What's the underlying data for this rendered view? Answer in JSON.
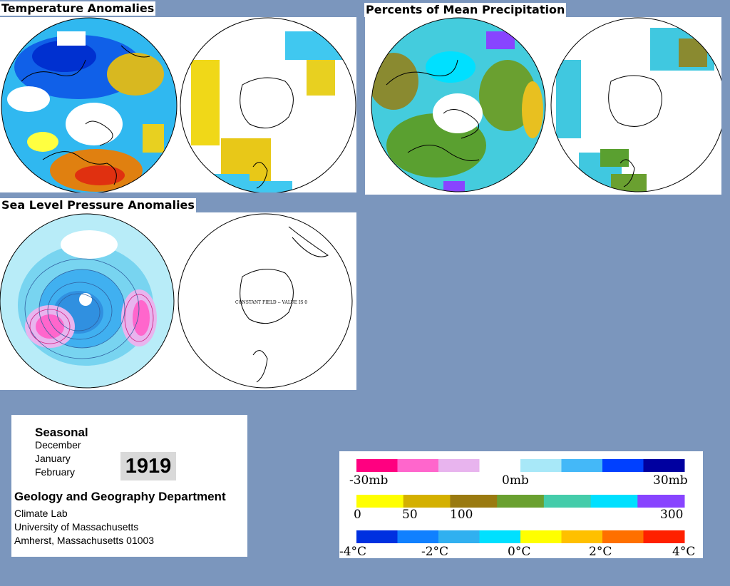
{
  "panels": {
    "temperature": {
      "title": "Temperature Anomalies"
    },
    "precipitation": {
      "title": "Percents of Mean Precipitation"
    },
    "pressure": {
      "title": "Sea Level Pressure Anomalies",
      "annotation": "CONSTANT FIELD -- VALUE IS 0"
    }
  },
  "info": {
    "season": "Seasonal",
    "months": [
      "December",
      "January",
      "February"
    ],
    "year": "1919",
    "department": "Geology and Geography Department",
    "address_lines": [
      "Climate Lab",
      "University of Massachusetts",
      "Amherst, Massachusetts 01003"
    ]
  },
  "legend": {
    "pressure": {
      "ticks": [
        "-30mb",
        "0mb",
        "30mb"
      ],
      "colors": [
        "#ff0080",
        "#ff66cc",
        "#e8b4ee",
        "#ffffff",
        "#a8e8f8",
        "#44b8f8",
        "#0040ff",
        "#0000a0"
      ]
    },
    "precip": {
      "ticks": [
        "0",
        "50",
        "100",
        "300"
      ],
      "colors": [
        "#ffff00",
        "#d4b000",
        "#9a7a10",
        "#6aa030",
        "#44ccaa",
        "#00e0ff",
        "#8844ff"
      ]
    },
    "temp": {
      "ticks": [
        "-4°C",
        "-2°C",
        "0°C",
        "2°C",
        "4°C"
      ],
      "colors": [
        "#0030e0",
        "#1080ff",
        "#30b0f0",
        "#00e0ff",
        "#ffff00",
        "#ffc000",
        "#ff7000",
        "#ff2000"
      ]
    }
  }
}
